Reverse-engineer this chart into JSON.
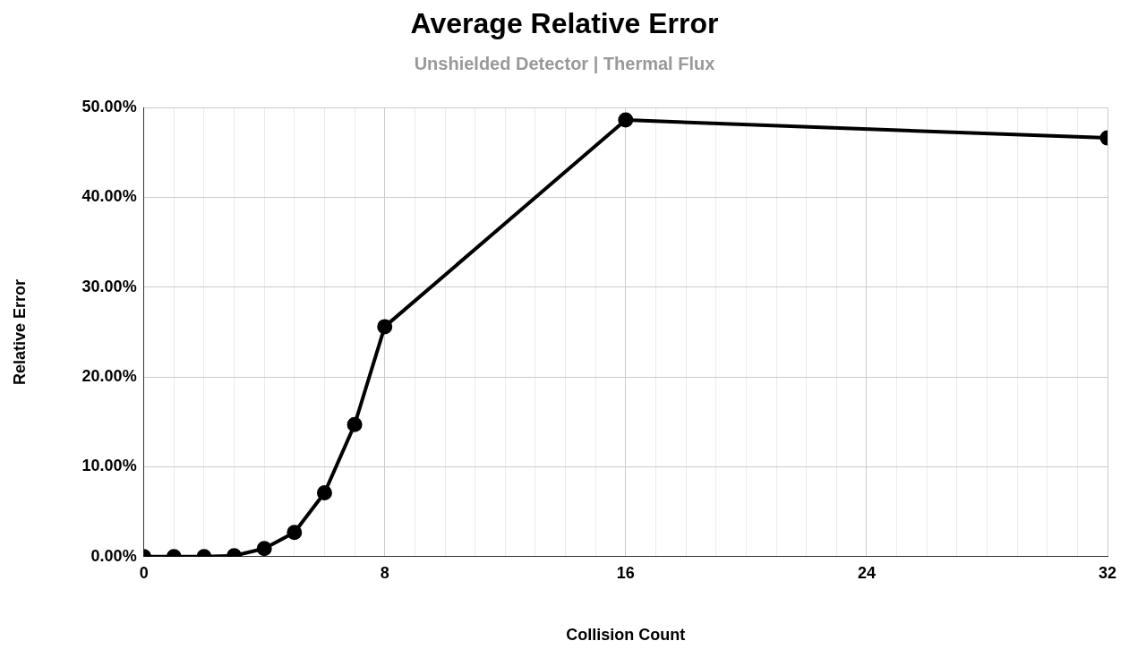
{
  "chart_data": {
    "type": "line",
    "title": "Average Relative Error",
    "subtitle": "Unshielded Detector | Thermal Flux",
    "xlabel": "Collision Count",
    "ylabel": "Relative Error",
    "x": [
      0,
      1,
      2,
      3,
      4,
      5,
      6,
      7,
      8,
      16,
      32
    ],
    "series": [
      {
        "color": "#000000",
        "values": [
          0,
          0,
          0,
          0.1,
          0.9,
          2.7,
          7.1,
          14.7,
          25.6,
          48.6,
          46.6
        ]
      }
    ],
    "xlim": [
      0,
      32
    ],
    "xticks": [
      0,
      {
        "value": 1,
        "label": null
      },
      {
        "value": 2,
        "label": null
      },
      {
        "value": 3,
        "label": null
      },
      {
        "value": 4,
        "label": null
      },
      {
        "value": 5,
        "label": null
      },
      {
        "value": 6,
        "label": null
      },
      {
        "value": 7,
        "label": null
      },
      8,
      {
        "value": 9,
        "label": null
      },
      {
        "value": 10,
        "label": null
      },
      {
        "value": 11,
        "label": null
      },
      {
        "value": 12,
        "label": null
      },
      {
        "value": 13,
        "label": null
      },
      {
        "value": 14,
        "label": null
      },
      {
        "value": 15,
        "label": null
      },
      16,
      {
        "value": 17,
        "label": null
      },
      {
        "value": 18,
        "label": null
      },
      {
        "value": 19,
        "label": null
      },
      {
        "value": 20,
        "label": null
      },
      {
        "value": 21,
        "label": null
      },
      {
        "value": 22,
        "label": null
      },
      {
        "value": 23,
        "label": null
      },
      24,
      {
        "value": 25,
        "label": null
      },
      {
        "value": 26,
        "label": null
      },
      {
        "value": 27,
        "label": null
      },
      {
        "value": 28,
        "label": null
      },
      {
        "value": 29,
        "label": null
      },
      {
        "value": 30,
        "label": null
      },
      {
        "value": 31,
        "label": null
      },
      32
    ],
    "ylim": [
      0,
      50
    ],
    "yticks": [
      {
        "value": 0,
        "label": "0.00%"
      },
      {
        "value": 10,
        "label": "10.00%"
      },
      {
        "value": 20,
        "label": "20.00%"
      },
      {
        "value": 30,
        "label": "30.00%"
      },
      {
        "value": 40,
        "label": "40.00%"
      },
      {
        "value": 50,
        "label": "50.00%"
      }
    ],
    "grid": true,
    "legend": false,
    "marker": "circle",
    "line_style": "solid"
  }
}
